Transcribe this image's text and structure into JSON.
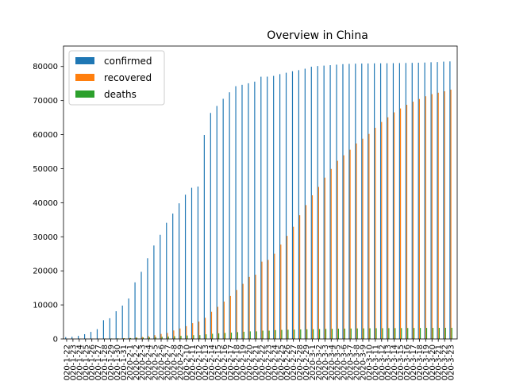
{
  "chart_data": {
    "type": "bar",
    "title": "Overview in China",
    "xlabel": "",
    "ylabel": "",
    "ylim": [
      0,
      86000
    ],
    "yticks": [
      0,
      10000,
      20000,
      30000,
      40000,
      50000,
      60000,
      70000,
      80000
    ],
    "grid": false,
    "legend_position": "top-left",
    "categories": [
      "2020-1-22",
      "2020-1-23",
      "2020-1-24",
      "2020-1-25",
      "2020-1-26",
      "2020-1-27",
      "2020-1-28",
      "2020-1-29",
      "2020-1-30",
      "2020-1-31",
      "2020-2-1",
      "2020-2-2",
      "2020-2-3",
      "2020-2-4",
      "2020-2-5",
      "2020-2-6",
      "2020-2-7",
      "2020-2-8",
      "2020-2-9",
      "2020-2-10",
      "2020-2-11",
      "2020-2-12",
      "2020-2-13",
      "2020-2-14",
      "2020-2-15",
      "2020-2-16",
      "2020-2-17",
      "2020-2-18",
      "2020-2-19",
      "2020-2-20",
      "2020-2-21",
      "2020-2-22",
      "2020-2-23",
      "2020-2-24",
      "2020-2-25",
      "2020-2-26",
      "2020-2-27",
      "2020-2-28",
      "2020-2-29",
      "2020-3-1",
      "2020-3-2",
      "2020-3-3",
      "2020-3-4",
      "2020-3-5",
      "2020-3-6",
      "2020-3-7",
      "2020-3-8",
      "2020-3-9",
      "2020-3-10",
      "2020-3-11",
      "2020-3-12",
      "2020-3-13",
      "2020-3-14",
      "2020-3-15",
      "2020-3-16",
      "2020-3-17",
      "2020-3-18",
      "2020-3-19",
      "2020-3-20",
      "2020-3-21",
      "2020-3-22",
      "2020-3-23"
    ],
    "series": [
      {
        "name": "confirmed",
        "color": "#1f77b4",
        "values": [
          548,
          643,
          920,
          1406,
          2075,
          2877,
          5509,
          6087,
          8141,
          9802,
          11891,
          16630,
          19716,
          23707,
          27440,
          30587,
          34110,
          36814,
          39829,
          42354,
          44386,
          44759,
          59895,
          66358,
          68413,
          70513,
          72434,
          74211,
          74619,
          75077,
          75550,
          77001,
          77022,
          77241,
          77754,
          78166,
          78600,
          78928,
          79356,
          79932,
          80136,
          80261,
          80386,
          80537,
          80690,
          80770,
          80823,
          80860,
          80887,
          80921,
          80932,
          80945,
          80977,
          81003,
          81033,
          81058,
          81102,
          81156,
          81250,
          81305,
          81435,
          81498
        ]
      },
      {
        "name": "recovered",
        "color": "#ff7f0e",
        "values": [
          28,
          30,
          36,
          39,
          49,
          58,
          101,
          120,
          135,
          214,
          275,
          463,
          614,
          843,
          1115,
          1476,
          1766,
          2496,
          3085,
          3761,
          4635,
          5096,
          6213,
          7987,
          9430,
          10983,
          12611,
          14387,
          16183,
          18221,
          18862,
          22698,
          23208,
          25028,
          27708,
          30264,
          32939,
          36323,
          39298,
          42175,
          44639,
          47367,
          49929,
          52301,
          53921,
          55558,
          57406,
          58799,
          60203,
          62002,
          63707,
          65063,
          66528,
          67679,
          68744,
          69652,
          70452,
          71263,
          71877,
          72298,
          72725,
          73200
        ]
      },
      {
        "name": "deaths",
        "color": "#2ca02c",
        "values": [
          17,
          18,
          26,
          42,
          56,
          82,
          131,
          133,
          171,
          213,
          259,
          361,
          425,
          490,
          562,
          632,
          717,
          804,
          904,
          1011,
          1111,
          1116,
          1368,
          1520,
          1662,
          1765,
          1863,
          2002,
          2114,
          2236,
          2236,
          2441,
          2443,
          2593,
          2663,
          2715,
          2744,
          2788,
          2835,
          2870,
          2912,
          2945,
          2981,
          3013,
          3042,
          3070,
          3097,
          3120,
          3136,
          3158,
          3169,
          3176,
          3189,
          3199,
          3213,
          3226,
          3237,
          3245,
          3253,
          3259,
          3274,
          3274
        ]
      }
    ]
  }
}
